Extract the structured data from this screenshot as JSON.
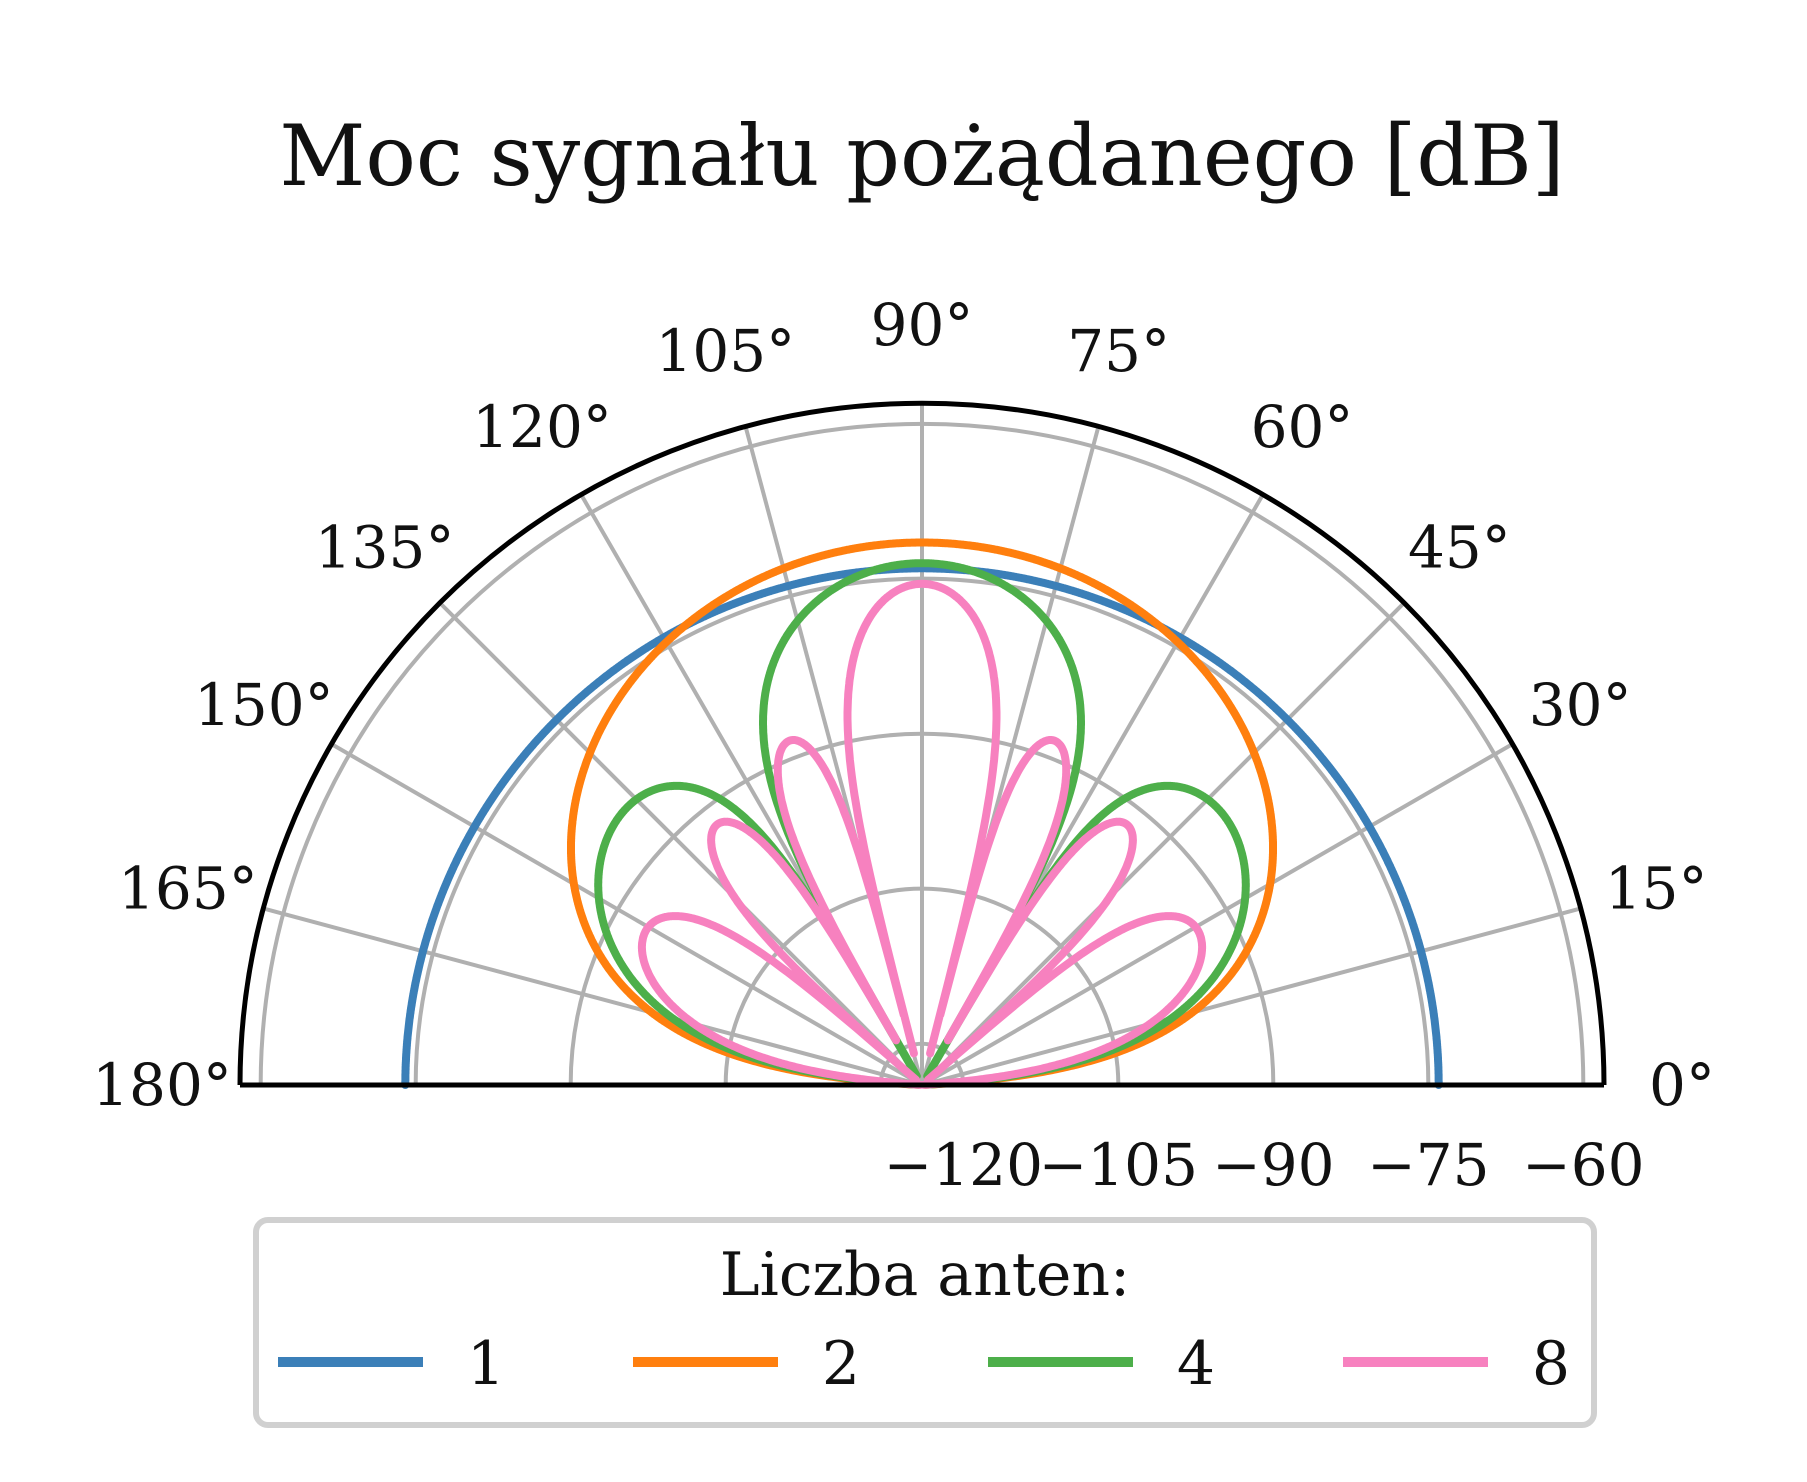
{
  "chart_data": {
    "type": "line",
    "projection": "polar-half",
    "title": "Moc sygnału pożądanego [dB]",
    "theta_range_deg": [
      0,
      180
    ],
    "theta_ticks": [
      "0°",
      "15°",
      "30°",
      "45°",
      "60°",
      "75°",
      "90°",
      "105°",
      "120°",
      "135°",
      "150°",
      "165°",
      "180°"
    ],
    "r_range": [
      -124,
      -58
    ],
    "r_ticks": [
      -120,
      -105,
      -90,
      -75,
      -60
    ],
    "r_tick_labels": [
      "−120",
      "−105",
      "−90",
      "−75",
      "−60"
    ],
    "grid": true,
    "legend": {
      "title": "Liczba anten:",
      "placement": "bottom",
      "entries": [
        "1",
        "2",
        "4",
        "8"
      ]
    },
    "series": [
      {
        "name": "1",
        "color": "#3b7fb8",
        "elements": 1,
        "max_db": -74
      },
      {
        "name": "2",
        "color": "#ff7f0e",
        "elements": 2,
        "max_db": -71.5
      },
      {
        "name": "4",
        "color": "#4daf4a",
        "elements": 4,
        "max_db": -73.5
      },
      {
        "name": "8",
        "color": "#f781bf",
        "elements": 8,
        "max_db": -75.5
      }
    ]
  }
}
